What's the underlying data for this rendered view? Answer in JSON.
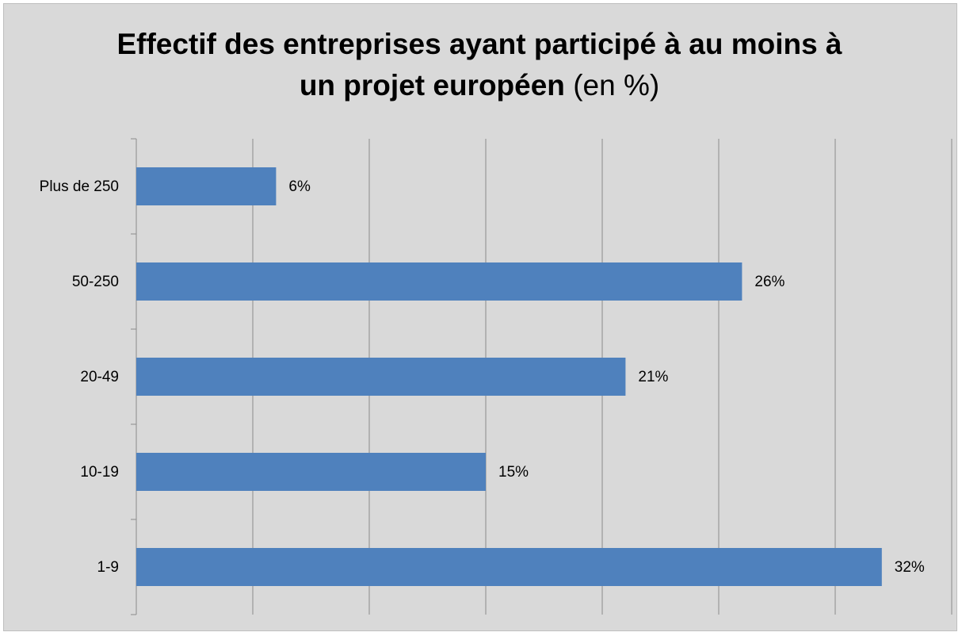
{
  "chart_data": {
    "type": "bar",
    "orientation": "horizontal",
    "title": "Effectif des entreprises ayant participé à au moins à un projet européen",
    "title_unit": "(en %)",
    "categories": [
      "Plus de 250",
      "50-250",
      "20-49",
      "10-19",
      "1-9"
    ],
    "values": [
      6,
      26,
      21,
      15,
      32
    ],
    "value_labels": [
      "6%",
      "26%",
      "21%",
      "15%",
      "32%"
    ],
    "color": "#4f81bd",
    "xlim": [
      0,
      35
    ],
    "xticks": [
      0,
      5,
      10,
      15,
      20,
      25,
      30,
      35
    ],
    "grid": true
  }
}
